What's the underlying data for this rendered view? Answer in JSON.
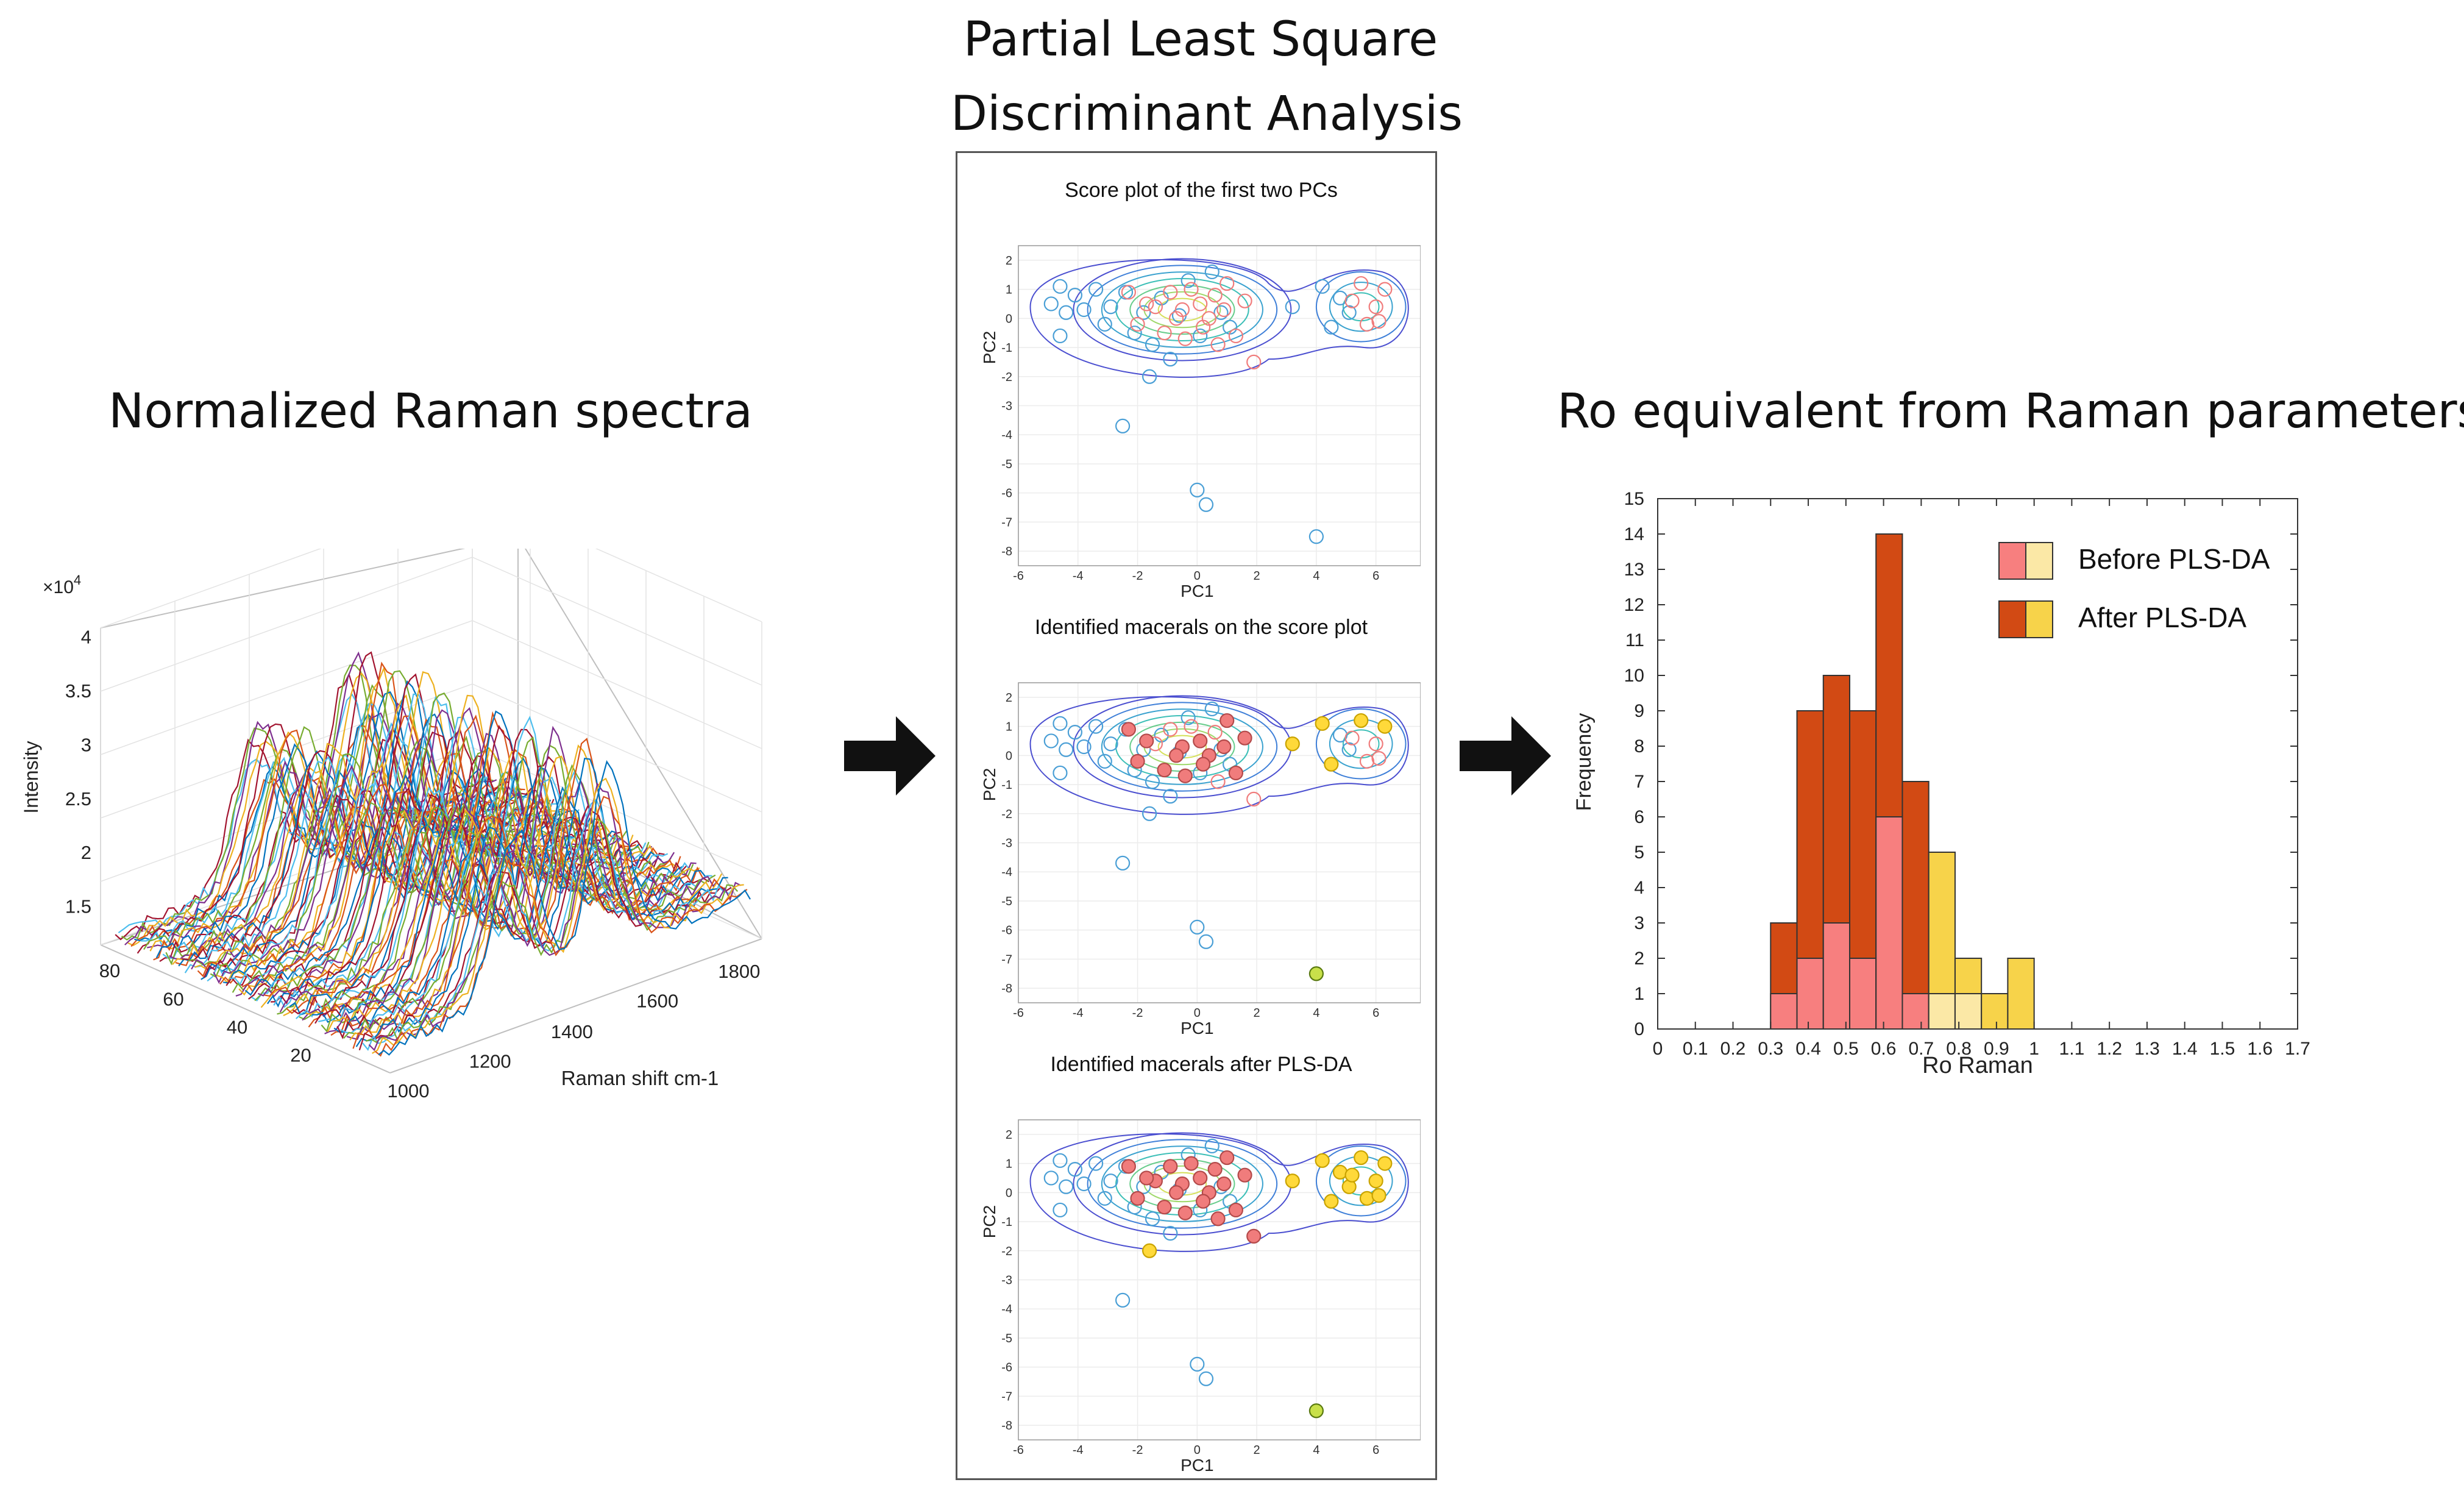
{
  "headings": {
    "spectra": "Normalized Raman spectra",
    "plsda_line1": "Partial Least Square",
    "plsda_line2": "Discriminant Analysis",
    "ro": "Ro equivalent from Raman parameters"
  },
  "colors": {
    "arrow": "#111111",
    "blue_marker": "#4a9fd6",
    "pink_marker": "#f07c7c",
    "yellow_marker": "#ffd93a",
    "contour_outer": "#4b4fd0",
    "before_pink": "#f77f7f",
    "before_yellow": "#fbe8a6",
    "after_orange": "#d24a14",
    "after_yellow": "#f7d34a"
  },
  "spectra_plot": {
    "z_exponent_label": "×10",
    "z_exponent_power": "4",
    "z_label": "Intensity",
    "z_ticks": [
      "4",
      "3.5",
      "3",
      "2.5",
      "2",
      "1.5"
    ],
    "y_ticks": [
      "80",
      "60",
      "40",
      "20"
    ],
    "x_ticks": [
      "1000",
      "1200",
      "1400",
      "1600",
      "1800"
    ],
    "x_label": "Raman shift cm-1"
  },
  "score_plots": [
    {
      "title": "Score plot of the first two PCs",
      "xlabel": "PC1",
      "ylabel": "PC2",
      "highlight": "none"
    },
    {
      "title": "Identified macerals on the score plot",
      "xlabel": "PC1",
      "ylabel": "PC2",
      "highlight": "partial"
    },
    {
      "title": "Identified macerals after PLS-DA",
      "xlabel": "PC1",
      "ylabel": "PC2",
      "highlight": "full"
    }
  ],
  "score_axes": {
    "x_ticks": [
      "-6",
      "-4",
      "-2",
      "0",
      "2",
      "4",
      "6"
    ],
    "y_ticks": [
      "2",
      "1",
      "0",
      "-1",
      "-2",
      "-3",
      "-4",
      "-5",
      "-6",
      "-7",
      "-8"
    ]
  },
  "chart_data": {
    "type": "bar",
    "xlabel": "Ro Raman",
    "ylabel": "Frequency",
    "xlim": [
      0,
      1.7
    ],
    "ylim": [
      0,
      15
    ],
    "x_ticks": [
      "0",
      "0.1",
      "0.2",
      "0.3",
      "0.4",
      "0.5",
      "0.6",
      "0.7",
      "0.8",
      "0.9",
      "1",
      "1.1",
      "1.2",
      "1.3",
      "1.4",
      "1.5",
      "1.6",
      "1.7"
    ],
    "y_ticks": [
      "0",
      "1",
      "2",
      "3",
      "4",
      "5",
      "6",
      "7",
      "8",
      "9",
      "10",
      "11",
      "12",
      "13",
      "14",
      "15"
    ],
    "bin_starts": [
      0.3,
      0.37,
      0.44,
      0.51,
      0.58,
      0.65,
      0.72,
      0.79,
      0.86,
      0.93
    ],
    "bin_width": 0.07,
    "series": [
      {
        "name": "Before PLS-DA",
        "values": [
          1,
          2,
          3,
          2,
          6,
          1,
          1,
          1,
          0,
          0
        ]
      },
      {
        "name": "After PLS-DA",
        "values": [
          3,
          9,
          10,
          9,
          14,
          7,
          5,
          2,
          1,
          2
        ]
      }
    ],
    "legend": [
      "Before PLS-DA",
      "After PLS-DA"
    ],
    "legend_position": "top-right"
  }
}
